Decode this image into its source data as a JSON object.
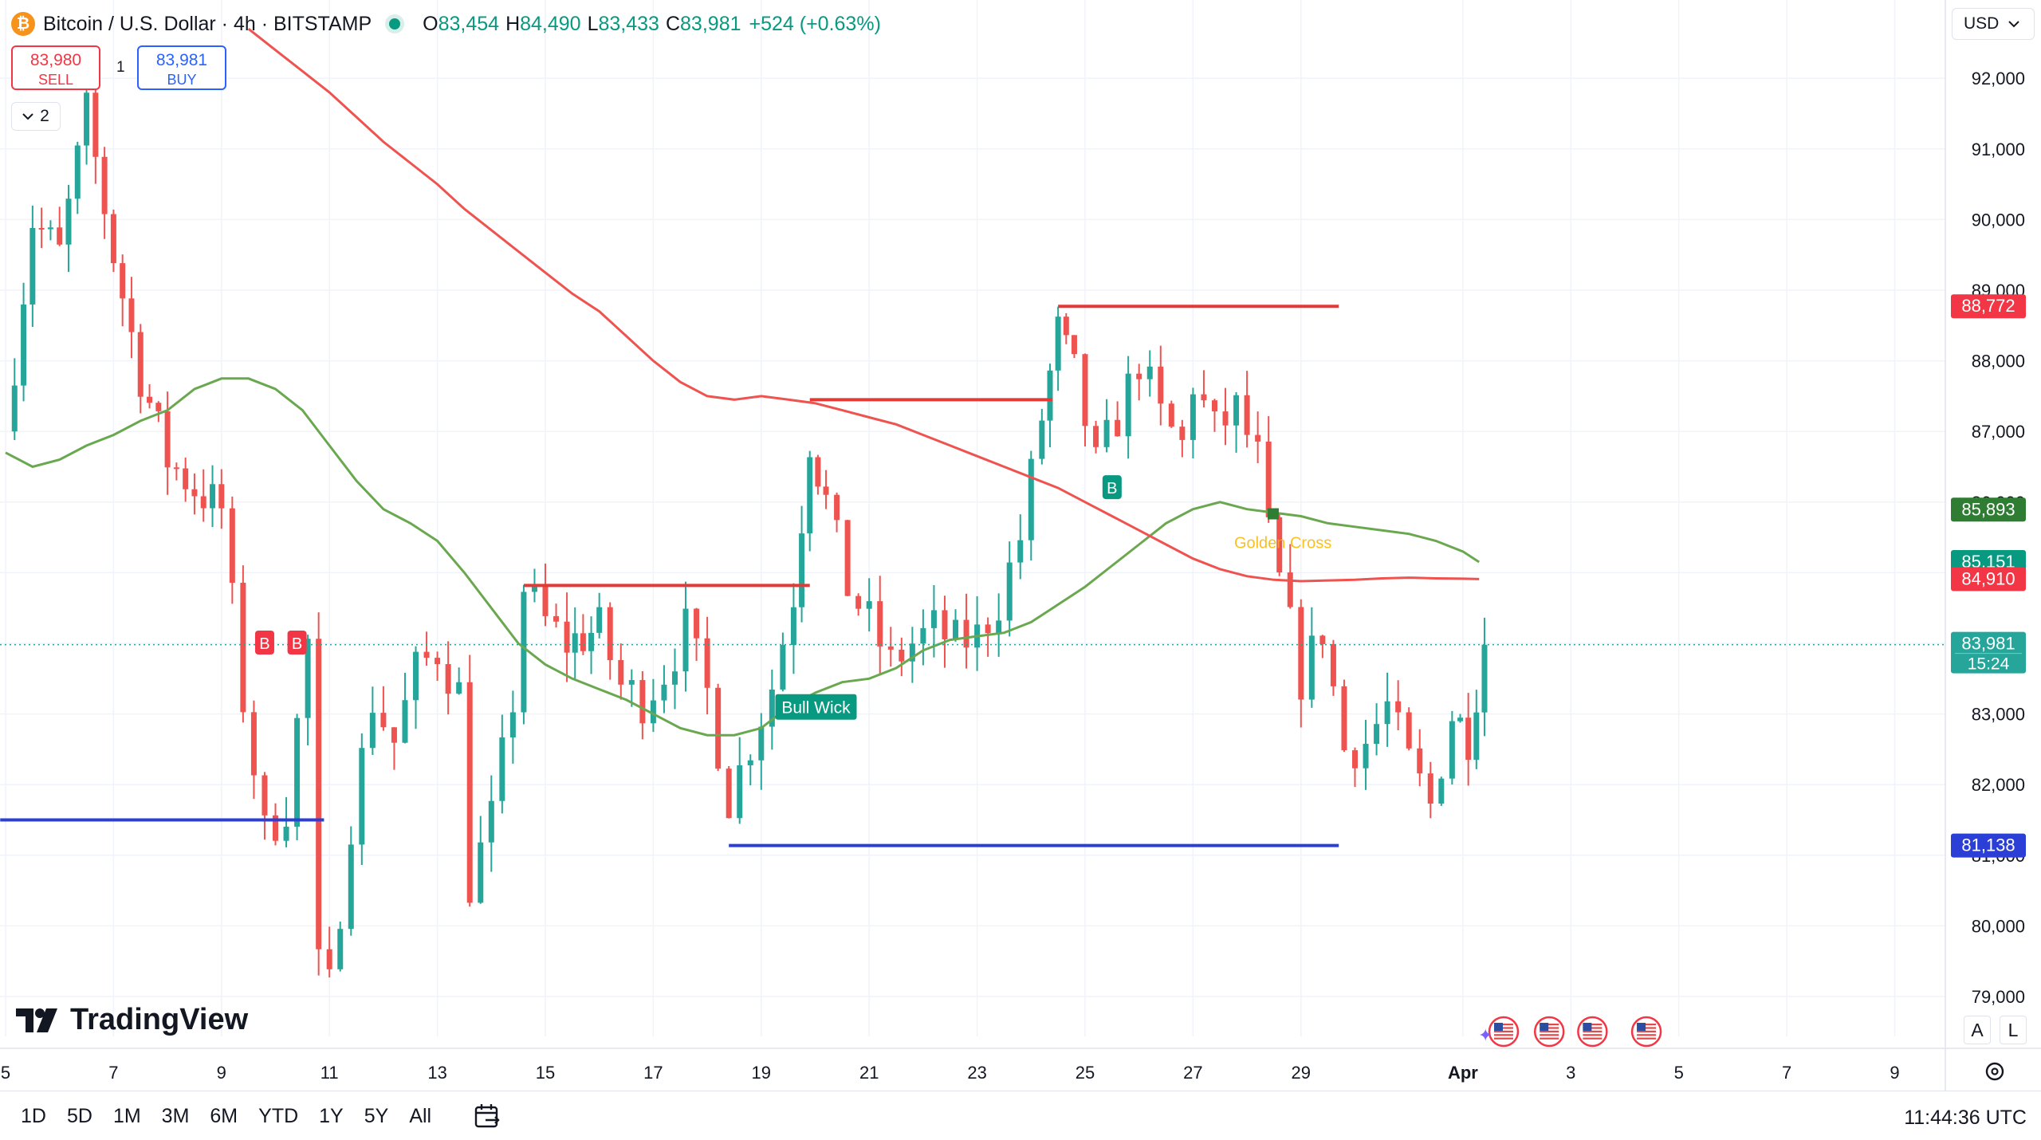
{
  "header": {
    "symbol_title": "Bitcoin / U.S. Dollar · 4h · BITSTAMP",
    "logo_glyph": "₿",
    "o_label": "O",
    "o_value": "83,454",
    "h_label": "H",
    "h_value": "84,490",
    "l_label": "L",
    "l_value": "83,433",
    "c_label": "C",
    "c_value": "83,981",
    "change": "+524 (+0.63%)"
  },
  "trade": {
    "sell_price": "83,980",
    "sell_label": "SELL",
    "qty": "1",
    "buy_price": "83,981",
    "buy_label": "BUY"
  },
  "indicators_toggle": {
    "count": "2",
    "icon": "chevron-down-icon"
  },
  "currency": {
    "label": "USD",
    "icon": "chevron-down-icon"
  },
  "brand": {
    "name": "TradingView"
  },
  "scale_buttons": {
    "auto": "A",
    "log": "L"
  },
  "toolbar": {
    "ranges": [
      "1D",
      "5D",
      "1M",
      "3M",
      "6M",
      "YTD",
      "1Y",
      "5Y",
      "All"
    ],
    "calendar_icon": "calendar-goto-icon",
    "clock": "11:44:36 UTC"
  },
  "colors": {
    "up": "#089981",
    "down": "#f23645",
    "up_body": "#26a69a",
    "down_body": "#ef5350",
    "ma_fast": "#6aa84f",
    "ma_slow": "#ef5350",
    "resistance": "#e53935",
    "support": "#2b3fd6",
    "last_price": "#26a69a"
  },
  "chart_data": {
    "type": "candlestick",
    "symbol": "Bitcoin / U.S. Dollar",
    "interval": "4h",
    "exchange": "BITSTAMP",
    "y_range": [
      78700,
      92500
    ],
    "y_ticks": [
      {
        "value": 79000,
        "label": "79,000"
      },
      {
        "value": 80000,
        "label": "80,000"
      },
      {
        "value": 81000,
        "label": "81,000"
      },
      {
        "value": 82000,
        "label": "82,000"
      },
      {
        "value": 83000,
        "label": "83,000"
      },
      {
        "value": 84000,
        "label": "84,000"
      },
      {
        "value": 85000,
        "label": "85,000"
      },
      {
        "value": 86000,
        "label": "86,000"
      },
      {
        "value": 87000,
        "label": "87,000"
      },
      {
        "value": 88000,
        "label": "88,000"
      },
      {
        "value": 89000,
        "label": "89,000"
      },
      {
        "value": 90000,
        "label": "90,000"
      },
      {
        "value": 91000,
        "label": "91,000"
      },
      {
        "value": 92000,
        "label": "92,000"
      }
    ],
    "x_day_range": [
      5,
      40.5
    ],
    "x_ticks": [
      {
        "day": 5,
        "label": "5"
      },
      {
        "day": 7,
        "label": "7"
      },
      {
        "day": 9,
        "label": "9"
      },
      {
        "day": 11,
        "label": "11"
      },
      {
        "day": 13,
        "label": "13"
      },
      {
        "day": 15,
        "label": "15"
      },
      {
        "day": 17,
        "label": "17"
      },
      {
        "day": 19,
        "label": "19"
      },
      {
        "day": 21,
        "label": "21"
      },
      {
        "day": 23,
        "label": "23"
      },
      {
        "day": 25,
        "label": "25"
      },
      {
        "day": 27,
        "label": "27"
      },
      {
        "day": 29,
        "label": "29"
      },
      {
        "day": 32,
        "label": "Apr"
      },
      {
        "day": 34,
        "label": "3"
      },
      {
        "day": 36,
        "label": "5"
      },
      {
        "day": 38,
        "label": "7"
      },
      {
        "day": 40,
        "label": "9"
      }
    ],
    "anchors": [
      {
        "day": 5.0,
        "price": 87000
      },
      {
        "day": 5.5,
        "price": 90000
      },
      {
        "day": 6.0,
        "price": 89500
      },
      {
        "day": 6.5,
        "price": 91500
      },
      {
        "day": 7.0,
        "price": 89500
      },
      {
        "day": 7.5,
        "price": 87800
      },
      {
        "day": 8.0,
        "price": 86600
      },
      {
        "day": 8.5,
        "price": 86200
      },
      {
        "day": 9.0,
        "price": 85900
      },
      {
        "day": 9.4,
        "price": 83200
      },
      {
        "day": 9.8,
        "price": 81300
      },
      {
        "day": 10.2,
        "price": 81700
      },
      {
        "day": 10.6,
        "price": 84000
      },
      {
        "day": 10.8,
        "price": 79400
      },
      {
        "day": 11.0,
        "price": 79100
      },
      {
        "day": 11.4,
        "price": 81500
      },
      {
        "day": 11.8,
        "price": 83200
      },
      {
        "day": 12.2,
        "price": 82600
      },
      {
        "day": 12.6,
        "price": 83600
      },
      {
        "day": 13.0,
        "price": 83900
      },
      {
        "day": 13.4,
        "price": 83300
      },
      {
        "day": 13.6,
        "price": 80600
      },
      {
        "day": 14.0,
        "price": 81500
      },
      {
        "day": 14.4,
        "price": 83200
      },
      {
        "day": 14.6,
        "price": 84800
      },
      {
        "day": 15.0,
        "price": 84300
      },
      {
        "day": 15.4,
        "price": 84000
      },
      {
        "day": 16.0,
        "price": 84200
      },
      {
        "day": 16.4,
        "price": 83400
      },
      {
        "day": 16.8,
        "price": 83200
      },
      {
        "day": 17.2,
        "price": 83600
      },
      {
        "day": 17.6,
        "price": 84200
      },
      {
        "day": 18.0,
        "price": 83300
      },
      {
        "day": 18.4,
        "price": 81800
      },
      {
        "day": 18.8,
        "price": 82600
      },
      {
        "day": 19.2,
        "price": 83400
      },
      {
        "day": 19.6,
        "price": 84700
      },
      {
        "day": 19.9,
        "price": 86900
      },
      {
        "day": 20.2,
        "price": 86000
      },
      {
        "day": 20.6,
        "price": 84800
      },
      {
        "day": 21.0,
        "price": 84300
      },
      {
        "day": 21.4,
        "price": 83700
      },
      {
        "day": 21.8,
        "price": 84000
      },
      {
        "day": 22.2,
        "price": 84200
      },
      {
        "day": 22.6,
        "price": 84000
      },
      {
        "day": 23.0,
        "price": 84100
      },
      {
        "day": 23.4,
        "price": 84600
      },
      {
        "day": 23.8,
        "price": 85500
      },
      {
        "day": 24.2,
        "price": 87200
      },
      {
        "day": 24.5,
        "price": 88400
      },
      {
        "day": 24.8,
        "price": 87800
      },
      {
        "day": 25.2,
        "price": 86500
      },
      {
        "day": 25.6,
        "price": 87200
      },
      {
        "day": 26.0,
        "price": 88000
      },
      {
        "day": 26.4,
        "price": 87200
      },
      {
        "day": 26.8,
        "price": 86800
      },
      {
        "day": 27.0,
        "price": 87700
      },
      {
        "day": 27.4,
        "price": 87000
      },
      {
        "day": 27.8,
        "price": 87300
      },
      {
        "day": 28.2,
        "price": 86600
      },
      {
        "day": 28.4,
        "price": 85500
      },
      {
        "day": 28.8,
        "price": 84200
      },
      {
        "day": 29.0,
        "price": 83500
      },
      {
        "day": 29.4,
        "price": 84200
      },
      {
        "day": 29.8,
        "price": 82500
      },
      {
        "day": 30.2,
        "price": 82600
      },
      {
        "day": 30.6,
        "price": 83100
      },
      {
        "day": 31.0,
        "price": 82300
      },
      {
        "day": 31.4,
        "price": 81700
      },
      {
        "day": 31.8,
        "price": 83000
      },
      {
        "day": 32.1,
        "price": 82700
      },
      {
        "day": 32.4,
        "price": 83981
      }
    ],
    "series": [
      {
        "name": "",
        "kind": "moving-average",
        "color": "#6aa84f",
        "points": [
          [
            5.0,
            86700
          ],
          [
            5.5,
            86500
          ],
          [
            6.0,
            86600
          ],
          [
            6.5,
            86800
          ],
          [
            7.0,
            86950
          ],
          [
            7.5,
            87150
          ],
          [
            8.0,
            87300
          ],
          [
            8.5,
            87600
          ],
          [
            9.0,
            87750
          ],
          [
            9.5,
            87750
          ],
          [
            10.0,
            87600
          ],
          [
            10.5,
            87300
          ],
          [
            11.0,
            86800
          ],
          [
            11.5,
            86300
          ],
          [
            12.0,
            85900
          ],
          [
            12.5,
            85700
          ],
          [
            13.0,
            85450
          ],
          [
            13.5,
            85000
          ],
          [
            14.0,
            84500
          ],
          [
            14.5,
            84000
          ],
          [
            15.0,
            83700
          ],
          [
            15.5,
            83500
          ],
          [
            16.0,
            83350
          ],
          [
            16.5,
            83200
          ],
          [
            17.0,
            83000
          ],
          [
            17.5,
            82800
          ],
          [
            18.0,
            82700
          ],
          [
            18.5,
            82700
          ],
          [
            19.0,
            82800
          ],
          [
            19.5,
            83100
          ],
          [
            20.0,
            83300
          ],
          [
            20.5,
            83450
          ],
          [
            21.0,
            83500
          ],
          [
            21.5,
            83650
          ],
          [
            22.0,
            83900
          ],
          [
            22.5,
            84050
          ],
          [
            23.0,
            84100
          ],
          [
            23.5,
            84150
          ],
          [
            24.0,
            84300
          ],
          [
            24.5,
            84550
          ],
          [
            25.0,
            84800
          ],
          [
            25.5,
            85100
          ],
          [
            26.0,
            85400
          ],
          [
            26.5,
            85700
          ],
          [
            27.0,
            85900
          ],
          [
            27.5,
            86000
          ],
          [
            28.0,
            85900
          ],
          [
            28.5,
            85850
          ],
          [
            29.0,
            85800
          ],
          [
            29.5,
            85700
          ],
          [
            30.0,
            85650
          ],
          [
            30.5,
            85600
          ],
          [
            31.0,
            85550
          ],
          [
            31.5,
            85450
          ],
          [
            32.0,
            85300
          ],
          [
            32.3,
            85151
          ]
        ]
      },
      {
        "name": "",
        "kind": "moving-average",
        "color": "#ef5350",
        "points": [
          [
            9.5,
            92700
          ],
          [
            10.0,
            92400
          ],
          [
            10.5,
            92100
          ],
          [
            11.0,
            91800
          ],
          [
            11.5,
            91450
          ],
          [
            12.0,
            91100
          ],
          [
            12.5,
            90800
          ],
          [
            13.0,
            90500
          ],
          [
            13.5,
            90150
          ],
          [
            14.0,
            89850
          ],
          [
            14.5,
            89550
          ],
          [
            15.0,
            89250
          ],
          [
            15.5,
            88950
          ],
          [
            16.0,
            88700
          ],
          [
            16.5,
            88350
          ],
          [
            17.0,
            88000
          ],
          [
            17.5,
            87700
          ],
          [
            18.0,
            87500
          ],
          [
            18.5,
            87450
          ],
          [
            19.0,
            87500
          ],
          [
            19.5,
            87450
          ],
          [
            20.0,
            87400
          ],
          [
            20.5,
            87300
          ],
          [
            21.0,
            87200
          ],
          [
            21.5,
            87100
          ],
          [
            22.0,
            86950
          ],
          [
            22.5,
            86800
          ],
          [
            23.0,
            86650
          ],
          [
            23.5,
            86500
          ],
          [
            24.0,
            86350
          ],
          [
            24.5,
            86200
          ],
          [
            25.0,
            86000
          ],
          [
            25.5,
            85800
          ],
          [
            26.0,
            85600
          ],
          [
            26.5,
            85400
          ],
          [
            27.0,
            85200
          ],
          [
            27.5,
            85050
          ],
          [
            28.0,
            84950
          ],
          [
            28.5,
            84900
          ],
          [
            29.0,
            84880
          ],
          [
            29.5,
            84890
          ],
          [
            30.0,
            84900
          ],
          [
            30.5,
            84920
          ],
          [
            31.0,
            84930
          ],
          [
            31.5,
            84920
          ],
          [
            32.0,
            84915
          ],
          [
            32.3,
            84910
          ]
        ]
      }
    ],
    "levels": [
      {
        "kind": "resistance",
        "price": 88772,
        "from_day": 24.5,
        "to_day": 29.7
      },
      {
        "kind": "resistance",
        "price": 87450,
        "from_day": 19.9,
        "to_day": 24.4
      },
      {
        "kind": "resistance",
        "price": 84820,
        "from_day": 14.6,
        "to_day": 19.9
      },
      {
        "kind": "support",
        "price": 81138,
        "from_day": 18.4,
        "to_day": 29.7
      },
      {
        "kind": "support",
        "price": 81500,
        "from_day": 4.9,
        "to_day": 10.9
      }
    ],
    "signals": [
      {
        "day": 9.8,
        "price": 84000,
        "label": "B",
        "color": "#f23645"
      },
      {
        "day": 10.4,
        "price": 84000,
        "label": "B",
        "color": "#f23645"
      },
      {
        "day": 25.5,
        "price": 86200,
        "label": "B",
        "color": "#089981"
      },
      {
        "day": 20.0,
        "price": 83100,
        "label": "Bull Wick",
        "color": "#089981"
      },
      {
        "day": 28.5,
        "price": 85800,
        "label": "Golden Cross",
        "color": "#f5b700"
      }
    ],
    "price_labels": [
      {
        "price": 88772,
        "label": "88,772",
        "color": "#f23645"
      },
      {
        "price": 85893,
        "label": "85,893",
        "color": "#2e7d32"
      },
      {
        "price": 85151,
        "label": "85,151",
        "color": "#089981"
      },
      {
        "price": 84910,
        "label": "84,910",
        "color": "#f23645"
      },
      {
        "price": 83981,
        "label": "83,981",
        "sub": "15:24",
        "color": "#26a69a"
      },
      {
        "price": 81138,
        "label": "81,138",
        "color": "#2b3fd6"
      }
    ],
    "event_markers": [
      {
        "day": 32.4,
        "icon": "us-flag-icon"
      },
      {
        "day": 33.6,
        "icon": "us-flag-icon"
      },
      {
        "day": 34.4,
        "icon": "us-flag-icon"
      },
      {
        "day": 35.4,
        "icon": "us-flag-icon"
      }
    ],
    "grid": true,
    "last_price": 83981,
    "countdown": "15:24"
  }
}
